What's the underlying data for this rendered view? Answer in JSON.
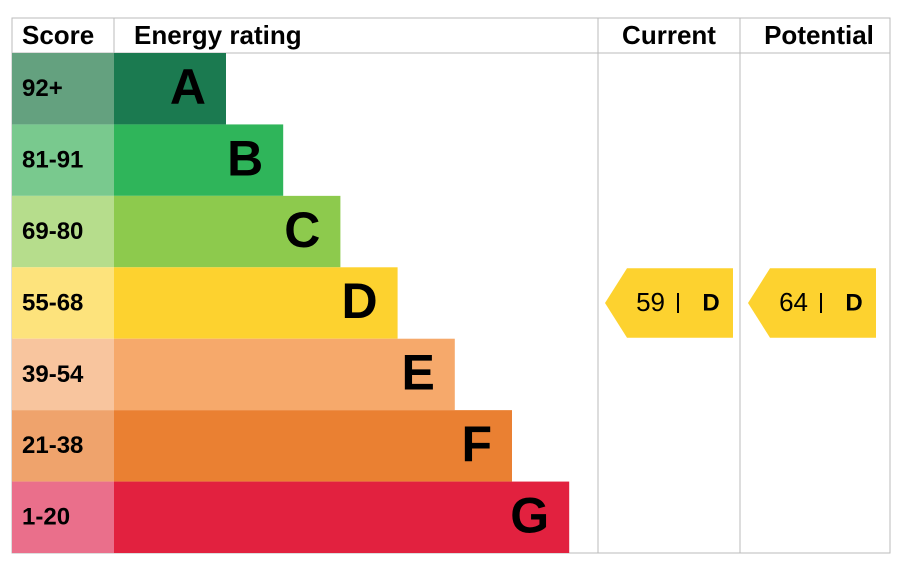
{
  "header": {
    "score": "Score",
    "rating": "Energy rating",
    "current": "Current",
    "potential": "Potential"
  },
  "rows": [
    {
      "score": "92+",
      "letter": "A",
      "color": "#1b7a50",
      "score_color": "#64a17f"
    },
    {
      "score": "81-91",
      "letter": "B",
      "color": "#2fb55a",
      "score_color": "#79c98e"
    },
    {
      "score": "69-80",
      "letter": "C",
      "color": "#8dca4d",
      "score_color": "#b6dd8c"
    },
    {
      "score": "55-68",
      "letter": "D",
      "color": "#fdd22f",
      "score_color": "#fde37c"
    },
    {
      "score": "39-54",
      "letter": "E",
      "color": "#f6a96b",
      "score_color": "#f8c59e"
    },
    {
      "score": "21-38",
      "letter": "F",
      "color": "#ea8032",
      "score_color": "#efa36c"
    },
    {
      "score": "1-20",
      "letter": "G",
      "color": "#e2213f",
      "score_color": "#ea6f8b"
    }
  ],
  "current": {
    "value": 59,
    "letter": "D"
  },
  "potential": {
    "value": 64,
    "letter": "D"
  }
}
